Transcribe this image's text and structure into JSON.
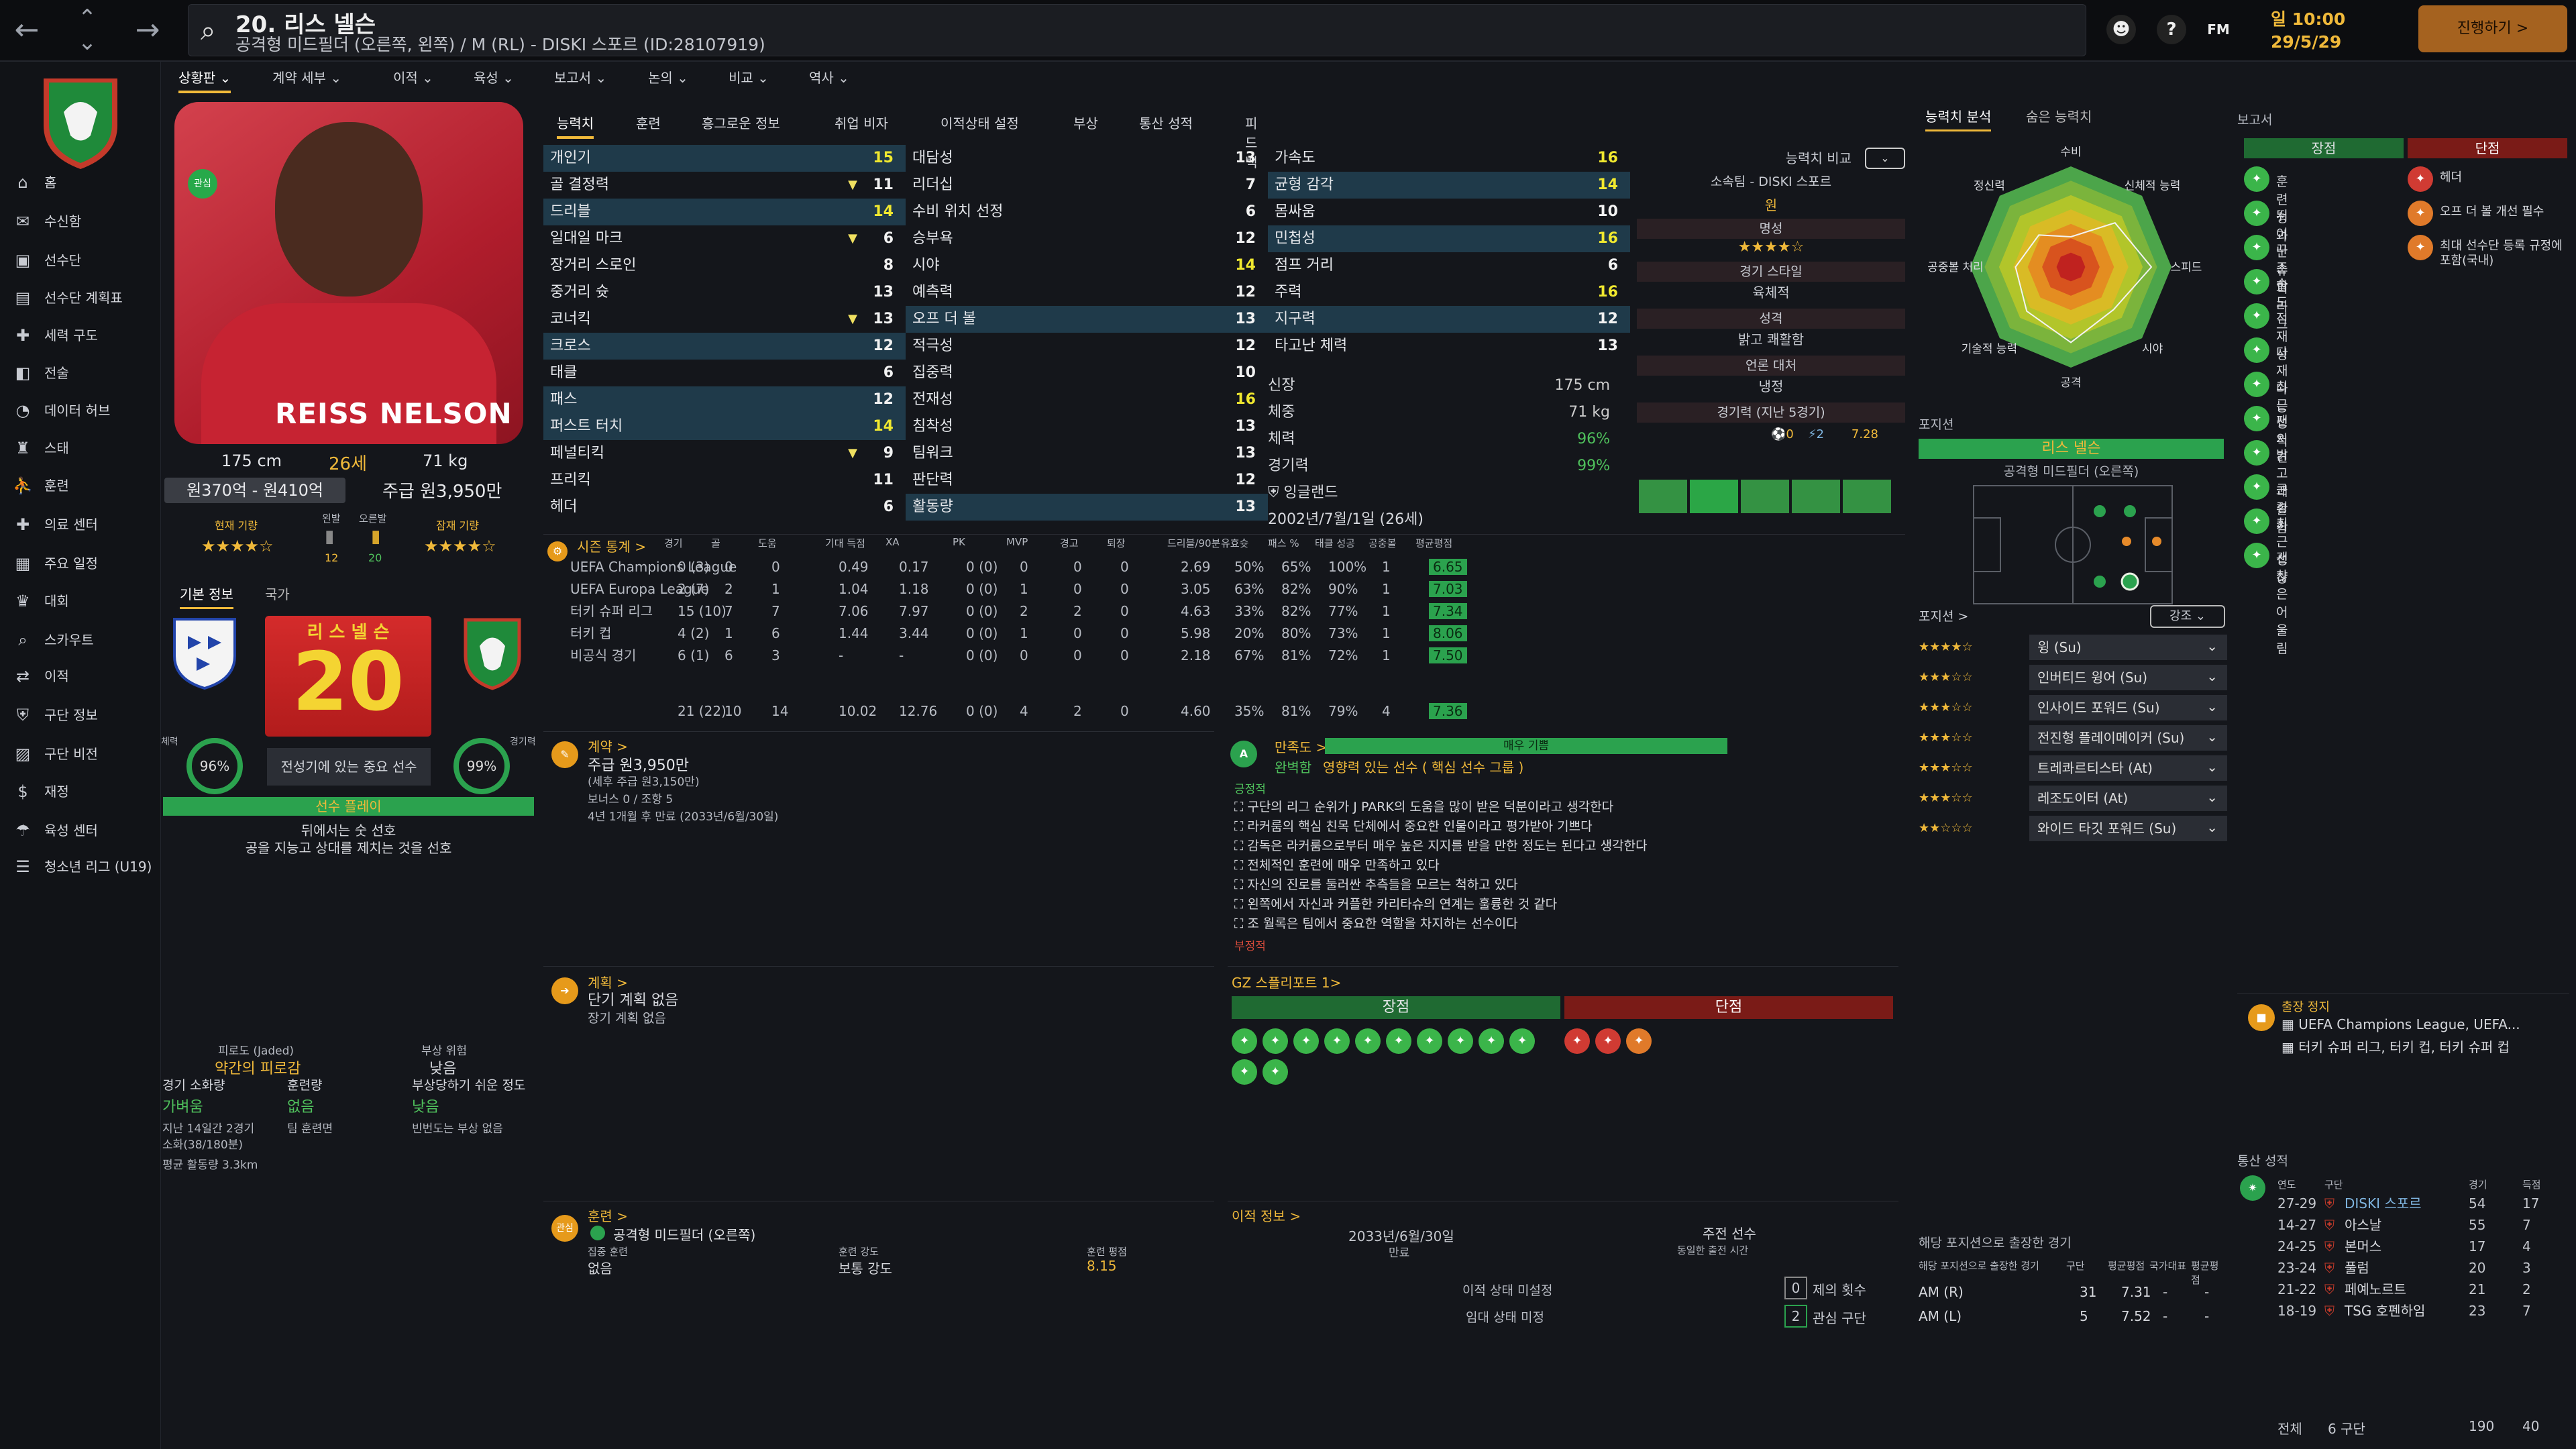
{
  "topbar": {
    "back": "←",
    "up": "⌃",
    "down": "⌄",
    "forward": "→",
    "title_name": "20. 리스 넬슨",
    "title_sub": "공격형 미드필더 (오른쪽, 왼쪽) / M (RL) - DISKI 스포르 (ID:28107919)",
    "time": "일 10:00",
    "date": "29/5/29",
    "continue": "진행하기 >",
    "fm": "FM",
    "help": "?"
  },
  "sidebar": [
    {
      "icon": "⌂",
      "label": "홈"
    },
    {
      "icon": "✉",
      "label": "수신함"
    },
    {
      "icon": "▣",
      "label": "선수단"
    },
    {
      "icon": "▤",
      "label": "선수단 계획표"
    },
    {
      "icon": "✚",
      "label": "세력 구도"
    },
    {
      "icon": "◧",
      "label": "전술"
    },
    {
      "icon": "◔",
      "label": "데이터 허브"
    },
    {
      "icon": "♜",
      "label": "스태"
    },
    {
      "icon": "⛹",
      "label": "훈련"
    },
    {
      "icon": "✚",
      "label": "의료 센터"
    },
    {
      "icon": "▦",
      "label": "주요 일정"
    },
    {
      "icon": "♛",
      "label": "대회"
    },
    {
      "icon": "⌕",
      "label": "스카우트"
    },
    {
      "icon": "⇄",
      "label": "이적"
    },
    {
      "icon": "⛨",
      "label": "구단 정보"
    },
    {
      "icon": "▨",
      "label": "구단 비전"
    },
    {
      "icon": "$",
      "label": "재정"
    },
    {
      "icon": "☂",
      "label": "육성 센터"
    },
    {
      "icon": "☰",
      "label": "청소년 리그 (U19)"
    }
  ],
  "subnav": [
    "상황판 ⌄",
    "계약 세부 ⌄",
    "이적 ⌄",
    "육성 ⌄",
    "보고서 ⌄",
    "논의 ⌄",
    "비교 ⌄",
    "역사 ⌄"
  ],
  "profile": {
    "height": "175 cm",
    "age": "26세",
    "weight": "71 kg",
    "value": "원370억 - 원410억",
    "wage": "주급 원3,950만",
    "badge": "관심",
    "cur_ability": "현재 기량",
    "pot_ability": "잠재 기량",
    "left_foot": "왼발",
    "right_foot": "오른발",
    "left_val": "12",
    "right_val": "20"
  },
  "basicinfo": {
    "tab1": "기본 정보",
    "tab2": "국가",
    "shirt_name": "리 스 넬 슨",
    "shirt_no": "20",
    "fitness": "96%",
    "sharp": "99%",
    "fit_label": "체력",
    "sharp_label": "경기력",
    "role_text": "전성기에 있는 중요 선수",
    "status": "선수 플레이",
    "pref1": "뒤에서는 숫 선호",
    "pref2": "공을 지능고 상대를 제치는 것을 선호"
  },
  "condition": {
    "fatigue_h": "피로도 (Jaded)",
    "fatigue": "약간의 피로감",
    "injury_h": "부상 위험",
    "injury": "낮음",
    "load_h": "경기 소화량",
    "load": "가벼움",
    "train_h": "훈련량",
    "train": "없음",
    "prone_h": "부상당하기 쉬운 정도",
    "prone": "낮음",
    "n1": "지난 14일간 2경기",
    "n2": "소화(38/180분)",
    "n3": "팀 훈련면 ",
    "n4": "빈번도는 부상 없음",
    "dist": "평균 활동량 3.3km"
  },
  "attrtabs": [
    "능력치",
    "훈련",
    "흥그로운 정보",
    "취업 비자",
    "이적상태 설정",
    "부상",
    "통산 성적",
    "피드백"
  ],
  "attr1": [
    [
      "개인기",
      "15",
      "",
      ""
    ],
    [
      "골 결정력",
      "11",
      "▼",
      ""
    ],
    [
      "드리블",
      "14",
      "",
      ""
    ],
    [
      "일대일 마크",
      "6",
      "▼",
      ""
    ],
    [
      "장거리 스로인",
      "8",
      "",
      ""
    ],
    [
      "중거리 슛",
      "13",
      "",
      ""
    ],
    [
      "코너킥",
      "13",
      "▼",
      ""
    ],
    [
      "크로스",
      "12",
      "",
      ""
    ],
    [
      "태클",
      "6",
      "",
      ""
    ],
    [
      "패스",
      "12",
      "",
      ""
    ],
    [
      "퍼스트 터치",
      "14",
      "",
      ""
    ],
    [
      "페널티킥",
      "9",
      "▼",
      ""
    ],
    [
      "프리킥",
      "11",
      "",
      ""
    ],
    [
      "헤더",
      "6",
      "",
      ""
    ]
  ],
  "attr2": [
    [
      "대담성",
      "13"
    ],
    [
      "리더십",
      "7"
    ],
    [
      "수비 위치 선정",
      "6"
    ],
    [
      "승부욕",
      "12"
    ],
    [
      "시야",
      "14"
    ],
    [
      "예측력",
      "12"
    ],
    [
      "오프 더 볼",
      "13"
    ],
    [
      "적극성",
      "12"
    ],
    [
      "집중력",
      "10"
    ],
    [
      "전재성",
      "16"
    ],
    [
      "침착성",
      "13"
    ],
    [
      "팀워크",
      "13"
    ],
    [
      "판단력",
      "12"
    ],
    [
      "활동량",
      "13"
    ]
  ],
  "attr3": [
    [
      "가속도",
      "16"
    ],
    [
      "균형 감각",
      "14"
    ],
    [
      "몸싸움",
      "10"
    ],
    [
      "민첩성",
      "16"
    ],
    [
      "점프 거리",
      "6"
    ],
    [
      "주력",
      "16"
    ],
    [
      "지구력",
      "12"
    ],
    [
      "타고난 체력",
      "13"
    ]
  ],
  "phys": {
    "h_l": "신장",
    "h_v": "175 cm",
    "w_l": "체중",
    "w_v": "71 kg",
    "fit_l": "체력",
    "fit_v": "96%",
    "sh_l": "경기력",
    "sh_v": "99%",
    "nat": "잉글랜드",
    "dob": "2002년/7월/1일 (26세)"
  },
  "compare": {
    "label": "능력치 비교",
    "club": "소속팀 - DISKI 스포르",
    "wage": "원",
    "fame": "명성",
    "style": "경기 스타일",
    "style_v": "육체적",
    "pers": "성격",
    "pers_v": "밝고 쾌활함",
    "media": "언론 대처",
    "media_v": "냉정",
    "form": "경기력 (지난 5경기)",
    "rating": "7.28"
  },
  "season": {
    "title": "시즌 통계 >",
    "headers": [
      "경기",
      "골",
      "도움",
      "기대 득점",
      "XA",
      "PK",
      "MVP",
      "경고",
      "퇴장",
      "드리블/90분",
      "유효슛",
      "패스 %",
      "태클 성공",
      "공중볼",
      "평균평점"
    ],
    "rows": [
      [
        "UEFA Champions League",
        "0 (3)",
        "0",
        "0",
        "0.49",
        "0.17",
        "0 (0)",
        "0",
        "0",
        "0",
        "2.69",
        "50%",
        "65%",
        "100%",
        "1",
        "6.65"
      ],
      [
        "UEFA Europa League",
        "2 (7)",
        "2",
        "1",
        "1.04",
        "1.18",
        "0 (0)",
        "1",
        "0",
        "0",
        "3.05",
        "63%",
        "82%",
        "90%",
        "1",
        "7.03"
      ],
      [
        "터키 슈퍼 리그",
        "15 (10)",
        "7",
        "7",
        "7.06",
        "7.97",
        "0 (0)",
        "2",
        "2",
        "0",
        "4.63",
        "33%",
        "82%",
        "77%",
        "1",
        "7.34"
      ],
      [
        "터키 컵",
        "4 (2)",
        "1",
        "6",
        "1.44",
        "3.44",
        "0 (0)",
        "1",
        "0",
        "0",
        "5.98",
        "20%",
        "80%",
        "73%",
        "1",
        "8.06"
      ],
      [
        "비공식 경기",
        "6 (1)",
        "6",
        "3",
        "-",
        "-",
        "0 (0)",
        "0",
        "0",
        "0",
        "2.18",
        "67%",
        "81%",
        "72%",
        "1",
        "7.50"
      ]
    ],
    "total": [
      "21 (22)",
      "10",
      "14",
      "10.02",
      "12.76",
      "0 (0)",
      "4",
      "2",
      "0",
      "4.60",
      "35%",
      "81%",
      "79%",
      "4",
      "7.36"
    ]
  },
  "contract": {
    "title": "계약 >",
    "wage": "주급 원3,950만",
    "sub": "(세후 주급 원3,150만)",
    "bonus": "보너스 0 / 조항 5",
    "exp": "4년 1개월 후 만료 (2033년/6월/30일)"
  },
  "satisfaction": {
    "title": "만족도 >",
    "level": "매우 기쁨",
    "role": "완벽함",
    "role_desc": "영향력 있는 선수 ( 핵심 선수 그룹 )",
    "pos_h": "긍정적",
    "items": [
      "구단의 리그 순위가 J PARK의 도움을 많이 받은 덕분이라고 생각한다",
      "라커룸의 핵심 친목 단체에서 중요한 인물이라고 평가받아 기쁘다",
      "감독은 라커룸으로부터 매우 높은 지지를 받을 만한 정도는 된다고 생각한다",
      "전체적인 훈련에 매우 만족하고 있다",
      "자신의 진로를 둘러싼 추측들을 모르는 척하고 있다",
      "왼쪽에서 자신과 커플한 카리타슈의 연계는 훌륭한 것 같다",
      "조 월록은 팀에서 중요한 역할을 차지하는 선수이다"
    ],
    "neg_h": "부정적"
  },
  "plan": {
    "title": "계획 >",
    "v1": "단기 계획 없음",
    "v2": "장기 계획 없음"
  },
  "gz": {
    "title": "GZ 스플리포트 1>",
    "strong": "장점",
    "weak": "단점"
  },
  "training": {
    "title": "훈련 >",
    "pos": "공격형 미드필더 (오른쪽)",
    "extra_h": "집중 훈련",
    "extra": "없음",
    "int_h": "훈련 강도",
    "int": "보통 강도",
    "rate_h": "훈련 평점",
    "rate": "8.15"
  },
  "transfer": {
    "title": "이적 정보 >",
    "date": "2033년/6월/30일",
    "date_l": "만료",
    "starter": "주전 선수",
    "starter_l": "동일한 출전 시간",
    "status": "이적 상태 미설정",
    "loan": "임대 상태 미정",
    "bids": "제의 횟수",
    "bids_v": "0",
    "int": "관심 구단",
    "int_v": "2"
  },
  "radar": {
    "tab1": "능력치 분석",
    "tab2": "숨은 능력치",
    "labels": [
      "수비",
      "신체적 능력",
      "스피드",
      "시야",
      "공격",
      "기술적 능력",
      "공중볼 처리",
      "정신력"
    ]
  },
  "position": {
    "title": "포지션",
    "name": "리스 넬슨",
    "sub": "공격형 미드필더 (오른쪽)"
  },
  "roles": {
    "title": "포지션 >",
    "strong": "강조",
    "items": [
      [
        "윙 (Su)",
        4
      ],
      [
        "인버티드 윙어 (Su)",
        3
      ],
      [
        "인사이드 포워드 (Su)",
        3
      ],
      [
        "전진형 플레이메이커 (Su)",
        3
      ],
      [
        "트레콰르티스타 (At)",
        3
      ],
      [
        "레조도이터 (At)",
        2.5
      ],
      [
        "와이드 타깃 포워드 (Su)",
        2
      ]
    ]
  },
  "posapps": {
    "title": "해당 포지션으로 출장한 경기",
    "sub": "해당 포지션으로 출장한 경기",
    "h": [
      "구단",
      "평균평점",
      "국가대표",
      "평균평점"
    ],
    "rows": [
      [
        "AM (R)",
        "31",
        "7.31",
        "-",
        "-"
      ],
      [
        "AM (L)",
        "5",
        "7.52",
        "-",
        "-"
      ]
    ]
  },
  "report": {
    "title": "보고서",
    "strong": "장점",
    "weak": "단점",
    "pros": [
      "훈련 성과",
      "뛰어난 슈퍼 리그",
      "꾸준함",
      "속도",
      "전재성",
      "다재다능",
      "최근 성적",
      "팬 의견",
      "밝고 쾌활함",
      "큰 경기",
      "최근 성장",
      "괜찮은 어울림"
    ],
    "cons": [
      "헤더",
      "오프 더 볼 개선 필수",
      "최대 선수단 등록 규정에 포함(국내)"
    ]
  },
  "susp": {
    "title": "출장 정지",
    "l1": "UEFA Champions League, UEFA...",
    "l2": "터키 슈퍼 리그, 터키 컵, 터키 슈퍼 컵"
  },
  "history": {
    "title": "통산 성적",
    "h": [
      "연도",
      "구단",
      "경기",
      "득점"
    ],
    "rows": [
      [
        "27-29",
        "DISKI 스포르",
        "54",
        "17"
      ],
      [
        "14-27",
        "아스날",
        "55",
        "7"
      ],
      [
        "24-25",
        "본머스",
        "17",
        "4"
      ],
      [
        "23-24",
        "풀럼",
        "20",
        "3"
      ],
      [
        "21-22",
        "페예노르트",
        "21",
        "2"
      ],
      [
        "18-19",
        "TSG 호펜하임",
        "23",
        "7"
      ]
    ],
    "total_l": "전체",
    "total_c": "6 구단",
    "total_apps": "190",
    "total_goals": "40"
  },
  "colors": {
    "accent": "#f0b93a",
    "green": "#2ba24e",
    "red": "#a1221d"
  }
}
